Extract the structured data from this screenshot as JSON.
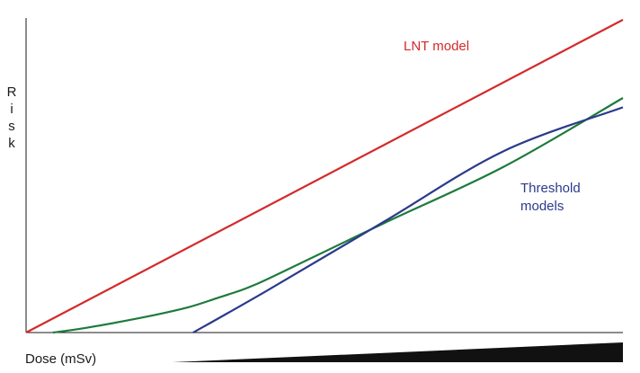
{
  "chart_data": {
    "type": "line",
    "xlabel": "Dose (mSv)",
    "ylabel": "Risk",
    "xlim": [
      0,
      100
    ],
    "ylim": [
      0,
      100
    ],
    "grid": false,
    "legend": "none",
    "series": [
      {
        "name": "LNT model",
        "color": "#d42a2a",
        "x": [
          0,
          100
        ],
        "y": [
          0,
          100
        ]
      },
      {
        "name": "",
        "color": "#1e7a3c",
        "x": [
          4.5,
          10,
          20,
          27,
          32,
          36,
          38,
          42,
          60,
          80,
          100
        ],
        "y": [
          0,
          1.5,
          5,
          8,
          11,
          13.5,
          15,
          18.5,
          35,
          53,
          75
        ]
      },
      {
        "name": "",
        "color": "#2b3a8c",
        "x": [
          28,
          40,
          60,
          80,
          100
        ],
        "y": [
          0,
          13,
          35.5,
          58,
          72
        ]
      }
    ],
    "annotations": [
      {
        "text": "LNT model",
        "color": "#d42a2a"
      },
      {
        "text": "Threshold",
        "color": "#2b3a8c"
      },
      {
        "text": "models",
        "color": "#2b3a8c"
      }
    ]
  }
}
